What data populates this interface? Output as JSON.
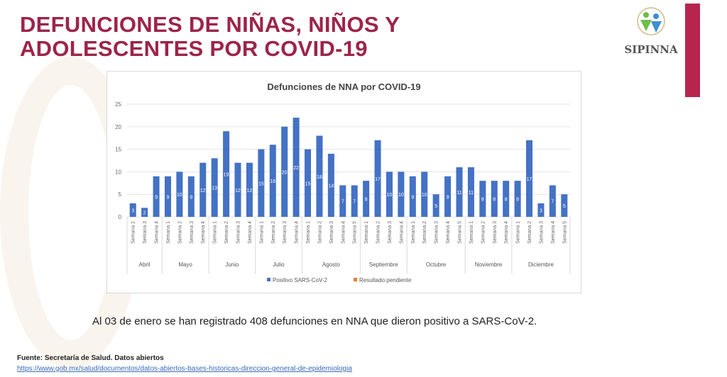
{
  "slide": {
    "title_line1": "DEFUNCIONES DE NIÑAS, NIÑOS Y",
    "title_line2": "ADOLESCENTES POR COVID-19",
    "logo_text": "SIPINNA",
    "note": "Al 03 de enero se han registrado 408 defunciones en NNA que dieron positivo a SARS-CoV-2.",
    "source": "Fuente: Secretaría de Salud. Datos abiertos",
    "source_url": "https://www.gob.mx/salud/documentos/datos-abiertos-bases-historicas-direccion-general-de-epidemiologia",
    "colors": {
      "title": "#9d2449",
      "accent_bar": "#b7254f"
    }
  },
  "chart_data": {
    "type": "bar",
    "title": "Defunciones de NNA por COVID-19",
    "ylim": [
      0,
      25
    ],
    "yticks": [
      0,
      5,
      10,
      15,
      20,
      25
    ],
    "grid": true,
    "legend_placement": "bottom",
    "groups": [
      {
        "month": "Abril",
        "weeks": [
          "Semana 2",
          "Semana 3",
          "Semana 4"
        ],
        "values": [
          3,
          2,
          9
        ]
      },
      {
        "month": "Mayo",
        "weeks": [
          "Semana 1",
          "Semana 2",
          "Semana 3",
          "Semana 4"
        ],
        "values": [
          9,
          10,
          9,
          12
        ]
      },
      {
        "month": "Junio",
        "weeks": [
          "Semana 1",
          "Semana 2",
          "Semana 3",
          "Semana 4"
        ],
        "values": [
          13,
          19,
          12,
          12
        ]
      },
      {
        "month": "Julio",
        "weeks": [
          "Semana 1",
          "Semana 2",
          "Semana 3",
          "Semana 4"
        ],
        "values": [
          15,
          16,
          20,
          22
        ]
      },
      {
        "month": "Agosto",
        "weeks": [
          "Semana 1",
          "Semana 2",
          "Semana 3",
          "Semana 4",
          "Semana 5"
        ],
        "values": [
          15,
          18,
          14,
          7,
          7
        ]
      },
      {
        "month": "Septiembre",
        "weeks": [
          "Semana 1",
          "Semana 2",
          "Semana 3",
          "Semana 4"
        ],
        "values": [
          8,
          17,
          10,
          10
        ]
      },
      {
        "month": "Octubre",
        "weeks": [
          "Semana 1",
          "Semana 2",
          "Semana 3",
          "Semana 4",
          "Semana 5"
        ],
        "values": [
          9,
          10,
          5,
          9,
          11
        ]
      },
      {
        "month": "Noviembre",
        "weeks": [
          "Semana 1",
          "Semana 2",
          "Semana 3",
          "Semana 4"
        ],
        "values": [
          11,
          8,
          8,
          8
        ]
      },
      {
        "month": "Diciembre",
        "weeks": [
          "Semana 1",
          "Semana 2",
          "Semana 3",
          "Semana 4",
          "Semana 5"
        ],
        "values": [
          8,
          17,
          3,
          7,
          5
        ]
      }
    ],
    "series": [
      {
        "name": "Positivo SARS-CoV-2",
        "color": "#4472c4"
      },
      {
        "name": "Resultado pendiente",
        "color": "#ed7d31"
      }
    ]
  }
}
